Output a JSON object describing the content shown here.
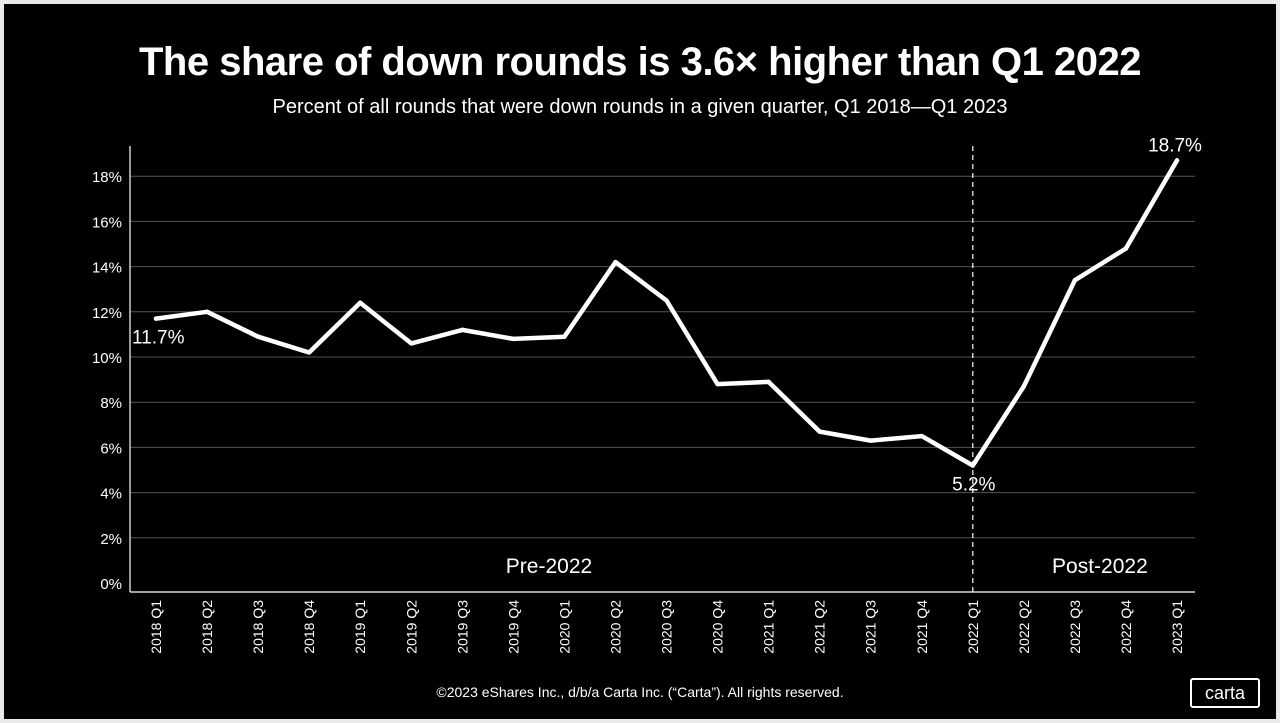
{
  "header": {
    "title": "The share of down rounds is 3.6× higher than Q1 2022",
    "subtitle": "Percent of all rounds that were down rounds in a given quarter, Q1 2018—Q1 2023"
  },
  "footer": {
    "copyright": "©2023 eShares Inc., d/b/a Carta Inc. (“Carta”). All rights reserved.",
    "logo_text": "carta"
  },
  "colors": {
    "background": "#000000",
    "line": "#ffffff",
    "grid": "#555555",
    "text": "#ffffff"
  },
  "chart_data": {
    "type": "line",
    "title": "The share of down rounds is 3.6× higher than Q1 2022",
    "subtitle": "Percent of all rounds that were down rounds in a given quarter, Q1 2018—Q1 2023",
    "xlabel": "",
    "ylabel": "",
    "categories": [
      "2018 Q1",
      "2018 Q2",
      "2018 Q3",
      "2018 Q4",
      "2019 Q1",
      "2019 Q2",
      "2019 Q3",
      "2019 Q4",
      "2020 Q1",
      "2020 Q2",
      "2020 Q3",
      "2020 Q4",
      "2021 Q1",
      "2021 Q2",
      "2021 Q3",
      "2021 Q4",
      "2022 Q1",
      "2022 Q2",
      "2022 Q3",
      "2022 Q4",
      "2023 Q1"
    ],
    "series": [
      {
        "name": "Down rounds share",
        "values": [
          11.7,
          12.0,
          10.9,
          10.2,
          12.4,
          10.6,
          11.2,
          10.8,
          10.9,
          14.2,
          12.5,
          8.8,
          8.9,
          6.7,
          6.3,
          6.5,
          5.2,
          8.7,
          13.4,
          14.8,
          18.7
        ]
      }
    ],
    "y_ticks": [
      {
        "value": 0,
        "label": "0%"
      },
      {
        "value": 2,
        "label": "2%"
      },
      {
        "value": 4,
        "label": "4%"
      },
      {
        "value": 6,
        "label": "6%"
      },
      {
        "value": 8,
        "label": "8%"
      },
      {
        "value": 10,
        "label": "10%"
      },
      {
        "value": 12,
        "label": "12%"
      },
      {
        "value": 14,
        "label": "14%"
      },
      {
        "value": 16,
        "label": "16%"
      },
      {
        "value": 18,
        "label": "18%"
      }
    ],
    "ylim": [
      0,
      19.5
    ],
    "grid": true,
    "data_labels": [
      {
        "index": 0,
        "text": "11.7%"
      },
      {
        "index": 16,
        "text": "5.2%"
      },
      {
        "index": 20,
        "text": "18.7%"
      }
    ],
    "divider": {
      "index": 16,
      "style": "dashed"
    },
    "regions": [
      {
        "label": "Pre-2022",
        "from": 0,
        "to": 16
      },
      {
        "label": "Post-2022",
        "from": 16,
        "to": 20
      }
    ]
  }
}
